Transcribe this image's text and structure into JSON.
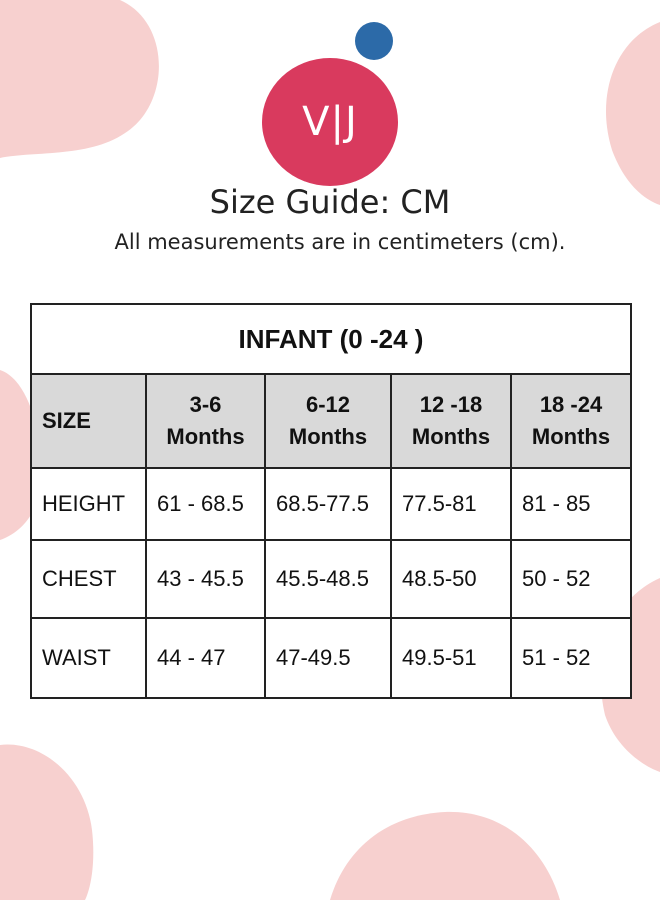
{
  "logo": {
    "text": "V|J"
  },
  "header": {
    "title": "Size Guide: CM",
    "subtitle": "All measurements are in centimeters (cm)."
  },
  "table": {
    "caption": "INFANT (0 -24 )",
    "headers": [
      {
        "line1": "SIZE",
        "line2": ""
      },
      {
        "line1": "3-6",
        "line2": "Months"
      },
      {
        "line1": "6-12",
        "line2": "Months"
      },
      {
        "line1": "12 -18",
        "line2": "Months"
      },
      {
        "line1": "18 -24",
        "line2": "Months"
      }
    ],
    "rows": [
      {
        "label": "HEIGHT",
        "values": [
          "61 - 68.5",
          "68.5-77.5",
          "77.5-81",
          "81 - 85"
        ]
      },
      {
        "label": "CHEST",
        "values": [
          "43 - 45.5",
          "45.5-48.5",
          "48.5-50",
          "50 - 52"
        ]
      },
      {
        "label": "WAIST",
        "values": [
          "44 - 47",
          "47-49.5",
          " 49.5-51",
          "51 - 52"
        ]
      }
    ]
  },
  "colors": {
    "logo_circle": "#d93a5e",
    "logo_dot": "#2c6aa8",
    "blob": "#f7d0cf",
    "header_fill": "#d9d9d9"
  }
}
